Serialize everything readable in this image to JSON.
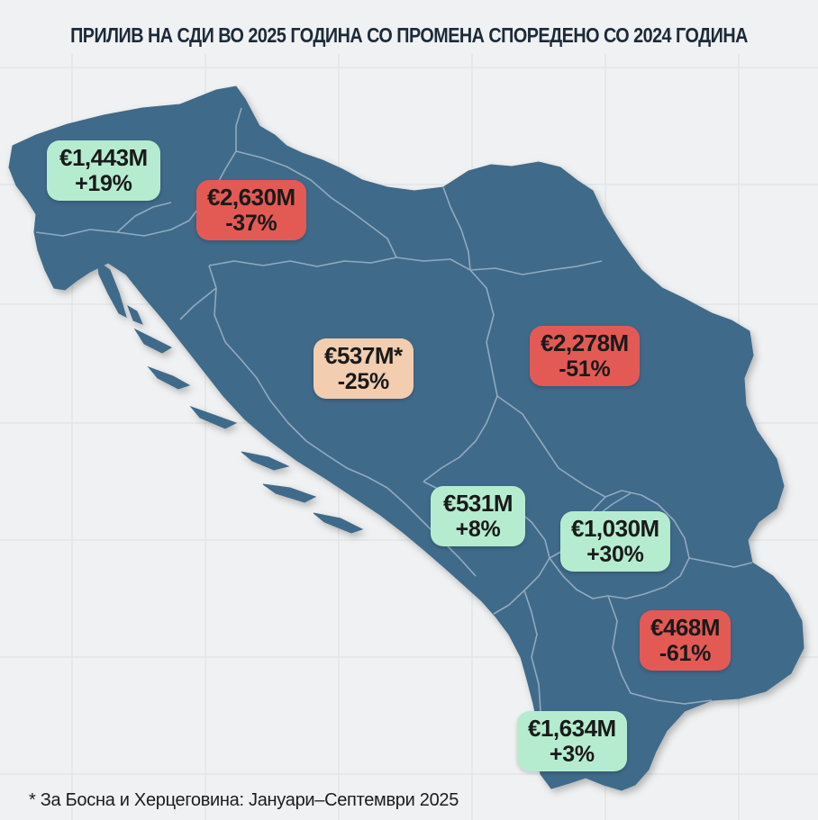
{
  "title": "ПРИЛИВ НА СДИ ВО 2025 ГОДИНА СО ПРОМЕНА СПОРЕДЕНО СО 2024 ГОДИНА",
  "footnote": "* За Босна и Херцеговина: Јануари–Септември 2025",
  "colors": {
    "background": "#f0f1f2",
    "land": "#406a8a",
    "border": "#9fb6c8",
    "positive": "#b5ecd0",
    "negative": "#e35a55",
    "neutral": "#f2cdb0"
  },
  "regions": [
    {
      "id": "slovenia",
      "amount": "€1,443M",
      "change": "+19%",
      "status": "positive"
    },
    {
      "id": "croatia",
      "amount": "€2,630M",
      "change": "-37%",
      "status": "negative"
    },
    {
      "id": "bosnia",
      "amount": "€537M*",
      "change": "-25%",
      "status": "neutral"
    },
    {
      "id": "serbia",
      "amount": "€2,278M",
      "change": "-51%",
      "status": "negative"
    },
    {
      "id": "montenegro",
      "amount": "€531M",
      "change": "+8%",
      "status": "positive"
    },
    {
      "id": "kosovo",
      "amount": "€1,030M",
      "change": "+30%",
      "status": "positive"
    },
    {
      "id": "north-macedonia",
      "amount": "€468M",
      "change": "-61%",
      "status": "negative"
    },
    {
      "id": "albania",
      "amount": "€1,634M",
      "change": "+3%",
      "status": "positive"
    }
  ]
}
